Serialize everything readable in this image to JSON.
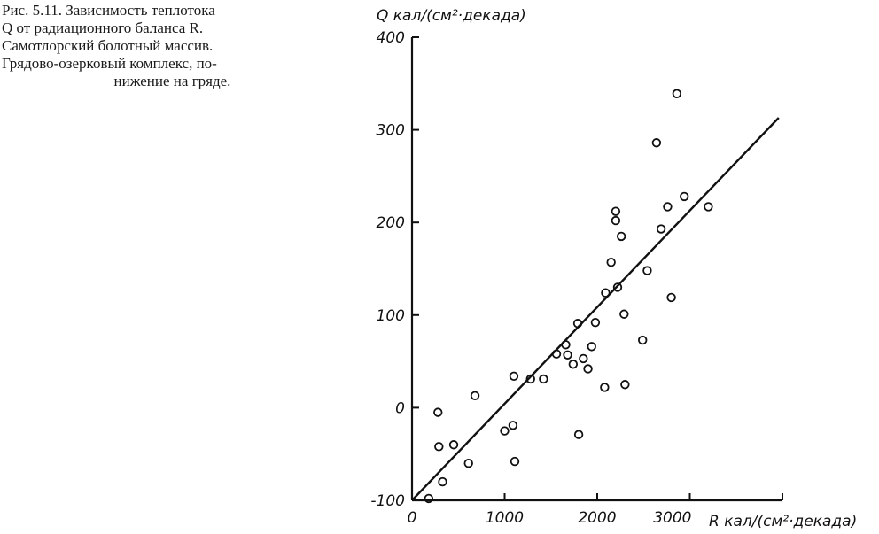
{
  "caption": {
    "lines": [
      "Рис. 5.11. Зависимость теплотока",
      "Q от радиационного баланса R.",
      "Самотлорский болотный массив.",
      "Грядово-озерковый комплекс, по-",
      "нижение на гряде."
    ]
  },
  "chart_data": {
    "type": "scatter",
    "ylabel": "Q кал/(см²·декада)",
    "xlabel": "R кал/(см²·декада)",
    "xlim": [
      0,
      4000
    ],
    "ylim": [
      -100,
      400
    ],
    "x_ticks": [
      "0",
      "1000",
      "2000",
      "3000"
    ],
    "y_ticks": [
      "-100",
      "0",
      "100",
      "200",
      "300",
      "400"
    ],
    "grid": false,
    "points": [
      {
        "x": 180,
        "y": -98
      },
      {
        "x": 290,
        "y": -42
      },
      {
        "x": 280,
        "y": -5
      },
      {
        "x": 330,
        "y": -80
      },
      {
        "x": 450,
        "y": -40
      },
      {
        "x": 610,
        "y": -60
      },
      {
        "x": 680,
        "y": 13
      },
      {
        "x": 1000,
        "y": -25
      },
      {
        "x": 1090,
        "y": -19
      },
      {
        "x": 1100,
        "y": 34
      },
      {
        "x": 1110,
        "y": -58
      },
      {
        "x": 1280,
        "y": 31
      },
      {
        "x": 1420,
        "y": 31
      },
      {
        "x": 1560,
        "y": 58
      },
      {
        "x": 1660,
        "y": 68
      },
      {
        "x": 1680,
        "y": 57
      },
      {
        "x": 1740,
        "y": 47
      },
      {
        "x": 1790,
        "y": 91
      },
      {
        "x": 1800,
        "y": -29
      },
      {
        "x": 1850,
        "y": 53
      },
      {
        "x": 1900,
        "y": 42
      },
      {
        "x": 1940,
        "y": 66
      },
      {
        "x": 1980,
        "y": 92
      },
      {
        "x": 2080,
        "y": 22
      },
      {
        "x": 2090,
        "y": 124
      },
      {
        "x": 2150,
        "y": 157
      },
      {
        "x": 2200,
        "y": 212
      },
      {
        "x": 2200,
        "y": 202
      },
      {
        "x": 2220,
        "y": 130
      },
      {
        "x": 2260,
        "y": 185
      },
      {
        "x": 2290,
        "y": 101
      },
      {
        "x": 2300,
        "y": 25
      },
      {
        "x": 2490,
        "y": 73
      },
      {
        "x": 2540,
        "y": 148
      },
      {
        "x": 2640,
        "y": 286
      },
      {
        "x": 2690,
        "y": 193
      },
      {
        "x": 2760,
        "y": 217
      },
      {
        "x": 2800,
        "y": 119
      },
      {
        "x": 2860,
        "y": 339
      },
      {
        "x": 2940,
        "y": 228
      },
      {
        "x": 3200,
        "y": 217
      }
    ],
    "fit_line": {
      "x": [
        0,
        3960
      ],
      "y": [
        -100,
        313
      ]
    },
    "colors": {
      "ink": "#111111",
      "background": "#ffffff"
    }
  }
}
